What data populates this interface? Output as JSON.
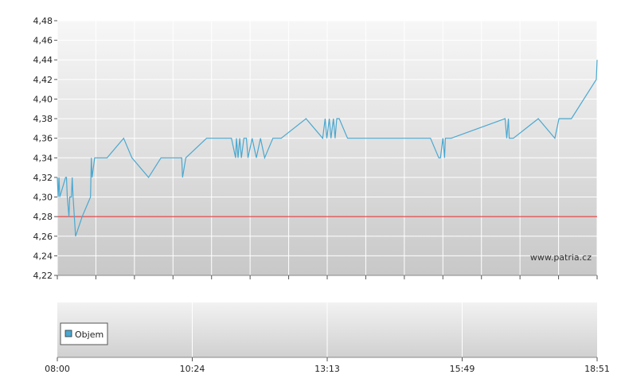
{
  "watermark": "www.patria.cz",
  "legend": {
    "label": "Objem"
  },
  "colors": {
    "line": "#4aa8d0",
    "reference": "#dd2222",
    "grid": "#ffffff",
    "volume_swatch": "#4aa8d0"
  },
  "chart_data": [
    {
      "type": "line",
      "title": "",
      "xlabel": "",
      "ylabel": "",
      "ylim": [
        4.22,
        4.48
      ],
      "yticks": [
        "4,22",
        "4,24",
        "4,26",
        "4,28",
        "4,30",
        "4,32",
        "4,34",
        "4,36",
        "4,38",
        "4,40",
        "4,42",
        "4,44",
        "4,46",
        "4,48"
      ],
      "xlim": [
        "08:00",
        "18:51"
      ],
      "xticks": [
        "08:00",
        "10:24",
        "13:13",
        "15:49",
        "18:51"
      ],
      "grid": true,
      "reference_line": 4.28,
      "series": [
        {
          "x": [
            "08:00",
            "08:01",
            "08:02",
            "08:03",
            "08:10",
            "08:11",
            "08:12",
            "08:14",
            "08:15",
            "08:17",
            "08:18",
            "08:19",
            "08:22",
            "08:30",
            "08:40",
            "08:41",
            "08:42",
            "08:45",
            "08:50",
            "09:00",
            "09:20",
            "09:30",
            "09:50",
            "10:05",
            "10:20",
            "10:30",
            "10:31",
            "10:35",
            "11:00",
            "11:30",
            "11:35",
            "11:36",
            "11:38",
            "11:40",
            "11:42",
            "11:45",
            "11:48",
            "11:50",
            "11:55",
            "12:00",
            "12:05",
            "12:10",
            "12:20",
            "12:25",
            "12:30",
            "13:00",
            "13:20",
            "13:23",
            "13:25",
            "13:28",
            "13:30",
            "13:33",
            "13:35",
            "13:37",
            "13:40",
            "13:50",
            "14:05",
            "14:30",
            "15:00",
            "15:30",
            "15:40",
            "15:42",
            "15:45",
            "15:47",
            "15:48",
            "15:50",
            "15:55",
            "17:00",
            "17:02",
            "17:04",
            "17:05",
            "17:10",
            "17:40",
            "18:00",
            "18:05",
            "18:20",
            "18:50",
            "18:51"
          ],
          "values": [
            4.32,
            4.3,
            4.32,
            4.3,
            4.32,
            4.32,
            4.3,
            4.28,
            4.3,
            4.3,
            4.32,
            4.3,
            4.26,
            4.28,
            4.3,
            4.34,
            4.32,
            4.34,
            4.34,
            4.34,
            4.36,
            4.34,
            4.32,
            4.34,
            4.34,
            4.34,
            4.32,
            4.34,
            4.36,
            4.36,
            4.34,
            4.36,
            4.34,
            4.36,
            4.34,
            4.36,
            4.36,
            4.34,
            4.36,
            4.34,
            4.36,
            4.34,
            4.36,
            4.36,
            4.36,
            4.38,
            4.36,
            4.38,
            4.36,
            4.38,
            4.36,
            4.38,
            4.36,
            4.38,
            4.38,
            4.36,
            4.36,
            4.36,
            4.36,
            4.36,
            4.34,
            4.34,
            4.36,
            4.34,
            4.36,
            4.36,
            4.36,
            4.38,
            4.36,
            4.38,
            4.36,
            4.36,
            4.38,
            4.36,
            4.38,
            4.38,
            4.42,
            4.44
          ]
        }
      ]
    },
    {
      "type": "bar",
      "title": "",
      "series": [
        {
          "name": "Objem",
          "values": []
        }
      ]
    }
  ]
}
